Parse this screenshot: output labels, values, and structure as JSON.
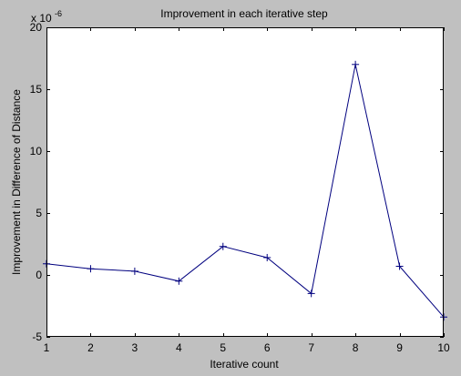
{
  "chart_data": {
    "type": "line",
    "title": "Improvement in each iterative step",
    "xlabel": "Iterative count",
    "ylabel": "Improvement in Difference of Distance",
    "exponent_base": "x 10",
    "exponent_power": "-6",
    "xlim": [
      1,
      10
    ],
    "ylim": [
      -5,
      20
    ],
    "x_ticks": [
      1,
      2,
      3,
      4,
      5,
      6,
      7,
      8,
      9,
      10
    ],
    "y_ticks": [
      -5,
      0,
      5,
      10,
      15,
      20
    ],
    "grid": false,
    "marker": "+",
    "colors": {
      "figure_background": "#c0c0c0",
      "plot_background": "#ffffff",
      "line": "#00007f",
      "axis": "#000000"
    },
    "series": [
      {
        "x": [
          1,
          2,
          3,
          4,
          5,
          6,
          7,
          8,
          9,
          10
        ],
        "values": [
          0.9,
          0.5,
          0.3,
          -0.5,
          2.3,
          1.4,
          -1.5,
          17.0,
          0.7,
          -3.4
        ]
      }
    ]
  }
}
